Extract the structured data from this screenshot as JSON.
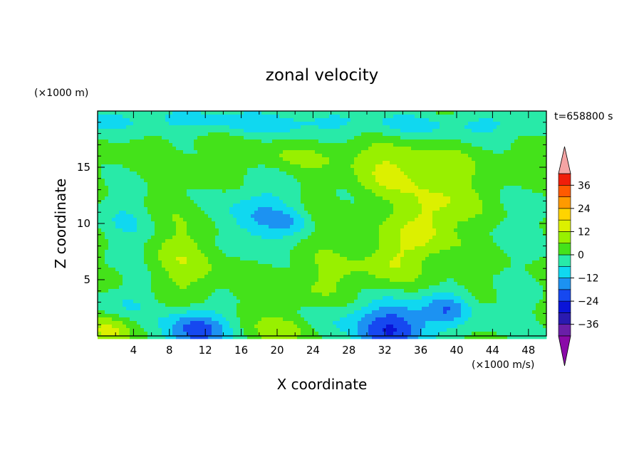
{
  "chart_data": {
    "type": "heatmap",
    "title": "zonal velocity",
    "xlabel": "X coordinate",
    "ylabel": "Z coordinate",
    "x_unit": "(×1000 m/s)",
    "y_unit": "(×1000 m)",
    "time_label": "t=658800 s",
    "xlim": [
      0,
      50
    ],
    "ylim": [
      0,
      20
    ],
    "x_ticks": [
      "4",
      "8",
      "12",
      "16",
      "20",
      "24",
      "28",
      "32",
      "36",
      "40",
      "44",
      "48"
    ],
    "x_tick_values": [
      4,
      8,
      12,
      16,
      20,
      24,
      28,
      32,
      36,
      40,
      44,
      48
    ],
    "y_ticks": [
      "5",
      "10",
      "15"
    ],
    "y_tick_values": [
      5,
      10,
      15
    ],
    "colorbar": {
      "ticks": [
        "36",
        "24",
        "12",
        "0",
        "−12",
        "−24",
        "−36"
      ],
      "tick_values": [
        36,
        24,
        12,
        0,
        -12,
        -24,
        -36
      ],
      "vmin": -42,
      "vmax": 42,
      "levels": [
        {
          "lo": -42,
          "hi": -36,
          "color": "#6a1fa8"
        },
        {
          "lo": -36,
          "hi": -30,
          "color": "#2a1ab0"
        },
        {
          "lo": -30,
          "hi": -24,
          "color": "#0a14d8"
        },
        {
          "lo": -24,
          "hi": -18,
          "color": "#1648f0"
        },
        {
          "lo": -18,
          "hi": -12,
          "color": "#1c92f2"
        },
        {
          "lo": -12,
          "hi": -6,
          "color": "#10d8f0"
        },
        {
          "lo": -6,
          "hi": 0,
          "color": "#28eaa8"
        },
        {
          "lo": 0,
          "hi": 6,
          "color": "#44e21a"
        },
        {
          "lo": 6,
          "hi": 12,
          "color": "#98f000"
        },
        {
          "lo": 12,
          "hi": 18,
          "color": "#dcf000"
        },
        {
          "lo": 18,
          "hi": 24,
          "color": "#ffd400"
        },
        {
          "lo": 24,
          "hi": 30,
          "color": "#ff9a00"
        },
        {
          "lo": 30,
          "hi": 36,
          "color": "#ff5a00"
        },
        {
          "lo": 36,
          "hi": 42,
          "color": "#f01e0a"
        }
      ],
      "over_color": "#f4a4a4",
      "under_color": "#8a0aa8"
    },
    "field": {
      "background": 2,
      "features": [
        {
          "x": 4,
          "z": 19.2,
          "sx": 10,
          "sz": 1.2,
          "v": -9
        },
        {
          "x": 20,
          "z": 19.0,
          "sx": 9,
          "sz": 1.3,
          "v": -10
        },
        {
          "x": 34,
          "z": 18.8,
          "sx": 8,
          "sz": 1.2,
          "v": -7
        },
        {
          "x": 46,
          "z": 18.8,
          "sx": 8,
          "sz": 1.4,
          "v": -8
        },
        {
          "x": 18,
          "z": 10.5,
          "sx": 4.5,
          "sz": 3.0,
          "v": -14
        },
        {
          "x": 21.5,
          "z": 10.2,
          "sx": 1.8,
          "sz": 1.0,
          "v": -6
        },
        {
          "x": 3,
          "z": 10,
          "sx": 3.5,
          "sz": 3.5,
          "v": -7
        },
        {
          "x": 48,
          "z": 10,
          "sx": 3,
          "sz": 4,
          "v": -6
        },
        {
          "x": 11,
          "z": 0.5,
          "sx": 3.5,
          "sz": 2.0,
          "v": -24
        },
        {
          "x": 33,
          "z": 0.8,
          "sx": 4.5,
          "sz": 2.4,
          "v": -26
        },
        {
          "x": 39,
          "z": 2.5,
          "sx": 2.5,
          "sz": 1.6,
          "v": -14
        },
        {
          "x": 3,
          "z": 3,
          "sx": 3.5,
          "sz": 1.6,
          "v": -8
        },
        {
          "x": 26,
          "z": 1.5,
          "sx": 3,
          "sz": 2,
          "v": -6
        },
        {
          "x": 45,
          "z": 2,
          "sx": 4,
          "sz": 2.5,
          "v": -5
        },
        {
          "x": 36.5,
          "z": 10,
          "sx": 3,
          "sz": 3,
          "v": 12
        },
        {
          "x": 33,
          "z": 14.5,
          "sx": 4,
          "sz": 2,
          "v": 10
        },
        {
          "x": 33,
          "z": 7,
          "sx": 3,
          "sz": 2,
          "v": 8
        },
        {
          "x": 10,
          "z": 7,
          "sx": 3.5,
          "sz": 3.5,
          "v": 8
        },
        {
          "x": 1,
          "z": 0.5,
          "sx": 2.5,
          "sz": 1.2,
          "v": 10
        },
        {
          "x": 21,
          "z": 0.6,
          "sx": 3,
          "sz": 1.2,
          "v": 8
        },
        {
          "x": 26,
          "z": 5,
          "sx": 6,
          "sz": 2.5,
          "v": 5
        },
        {
          "x": 40,
          "z": 13,
          "sx": 5,
          "sz": 3,
          "v": 5
        },
        {
          "x": 25,
          "z": 16,
          "sx": 12,
          "sz": 1.2,
          "v": 4
        }
      ]
    }
  }
}
